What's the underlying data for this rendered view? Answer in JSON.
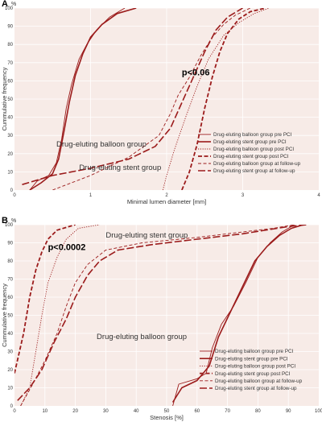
{
  "figure": {
    "colors": {
      "series": "#9b1b1b",
      "panel_bg": "#f7ebe7",
      "text": "#333333"
    }
  },
  "chart_data": [
    {
      "panel_label": "A",
      "type": "line",
      "title": "",
      "xlabel": "Minimal lumen diameter [mm]",
      "ylabel": "Cummulative frequency",
      "y_unit": "%",
      "xlim": [
        0,
        4
      ],
      "ylim": [
        0,
        100
      ],
      "xticks": [
        0,
        1,
        2,
        3,
        4
      ],
      "yticks": [
        0,
        10,
        20,
        30,
        40,
        50,
        60,
        70,
        80,
        90,
        100
      ],
      "grid": true,
      "legend_position": "bottom-right",
      "annotations": [
        {
          "text": "p<0.06",
          "x": 2.2,
          "y": 63,
          "bold": true
        },
        {
          "text": "Drug-eluting balloon group",
          "x": 0.55,
          "y": 24,
          "bold": false
        },
        {
          "text": "Drug-eluting stent group",
          "x": 0.85,
          "y": 11,
          "bold": false
        }
      ],
      "series": [
        {
          "name": "Drug-eluting balloon group pre PCI",
          "dash": "solid",
          "width": 0.9,
          "points": [
            [
              0.2,
              0
            ],
            [
              0.3,
              5
            ],
            [
              0.45,
              8
            ],
            [
              0.55,
              15
            ],
            [
              0.62,
              28
            ],
            [
              0.68,
              45
            ],
            [
              0.75,
              58
            ],
            [
              0.85,
              72
            ],
            [
              0.95,
              80
            ],
            [
              1.08,
              88
            ],
            [
              1.25,
              95
            ],
            [
              1.45,
              100
            ]
          ]
        },
        {
          "name": "Drug-eluting stent group pre PCI",
          "dash": "solid",
          "width": 1.6,
          "points": [
            [
              0.2,
              0
            ],
            [
              0.35,
              4
            ],
            [
              0.5,
              9
            ],
            [
              0.58,
              17
            ],
            [
              0.65,
              32
            ],
            [
              0.72,
              48
            ],
            [
              0.8,
              63
            ],
            [
              0.9,
              75
            ],
            [
              1.0,
              84
            ],
            [
              1.15,
              91
            ],
            [
              1.35,
              97
            ],
            [
              1.6,
              100
            ]
          ]
        },
        {
          "name": "Drug-eluting balloon group post PCI",
          "dash": "dot",
          "width": 0.9,
          "points": [
            [
              1.95,
              0
            ],
            [
              2.0,
              8
            ],
            [
              2.1,
              22
            ],
            [
              2.25,
              40
            ],
            [
              2.4,
              57
            ],
            [
              2.55,
              72
            ],
            [
              2.75,
              85
            ],
            [
              2.95,
              92
            ],
            [
              3.15,
              97
            ],
            [
              3.35,
              100
            ]
          ]
        },
        {
          "name": "Drug-eluting stent group post PCI",
          "dash": "heavydash",
          "width": 1.8,
          "points": [
            [
              2.2,
              0
            ],
            [
              2.3,
              10
            ],
            [
              2.4,
              25
            ],
            [
              2.5,
              45
            ],
            [
              2.6,
              62
            ],
            [
              2.7,
              76
            ],
            [
              2.8,
              86
            ],
            [
              2.95,
              94
            ],
            [
              3.1,
              98
            ],
            [
              3.3,
              100
            ]
          ]
        },
        {
          "name": "Drug-eluting balloon group at follow-up",
          "dash": "dash",
          "width": 0.9,
          "points": [
            [
              0.5,
              0
            ],
            [
              1.0,
              8
            ],
            [
              1.5,
              18
            ],
            [
              1.9,
              30
            ],
            [
              2.05,
              42
            ],
            [
              2.15,
              52
            ],
            [
              2.3,
              62
            ],
            [
              2.45,
              74
            ],
            [
              2.6,
              84
            ],
            [
              2.75,
              91
            ],
            [
              2.9,
              96
            ],
            [
              3.1,
              100
            ]
          ]
        },
        {
          "name": "Drug-eluting stent group at follow-up",
          "dash": "longdash",
          "width": 1.6,
          "points": [
            [
              0.1,
              3
            ],
            [
              0.5,
              8
            ],
            [
              1.0,
              12
            ],
            [
              1.5,
              17
            ],
            [
              1.85,
              24
            ],
            [
              2.05,
              34
            ],
            [
              2.2,
              48
            ],
            [
              2.35,
              62
            ],
            [
              2.5,
              76
            ],
            [
              2.65,
              88
            ],
            [
              2.8,
              95
            ],
            [
              3.0,
              100
            ]
          ]
        }
      ]
    },
    {
      "panel_label": "B",
      "type": "line",
      "title": "",
      "xlabel": "Stenosis [%]",
      "ylabel": "Cummulative frequency",
      "y_unit": "%",
      "xlim": [
        0,
        100
      ],
      "ylim": [
        0,
        100
      ],
      "xticks": [
        0,
        10,
        20,
        30,
        40,
        50,
        60,
        70,
        80,
        90,
        100
      ],
      "yticks": [
        0,
        10,
        20,
        30,
        40,
        50,
        60,
        70,
        80,
        90,
        100
      ],
      "grid": true,
      "legend_position": "bottom-right",
      "annotations": [
        {
          "text": "p<0.0002",
          "x": 11,
          "y": 86,
          "bold": true
        },
        {
          "text": "Drug-eluting stent group",
          "x": 30,
          "y": 93,
          "bold": false
        },
        {
          "text": "Drug-eluting balloon group",
          "x": 27,
          "y": 37,
          "bold": false
        }
      ],
      "series": [
        {
          "name": "Drug-eluting balloon group pre PCI",
          "dash": "solid",
          "width": 0.9,
          "points": [
            [
              52,
              0
            ],
            [
              54,
              12
            ],
            [
              60,
              15
            ],
            [
              63,
              18
            ],
            [
              65,
              32
            ],
            [
              68,
              45
            ],
            [
              72,
              55
            ],
            [
              76,
              68
            ],
            [
              80,
              82
            ],
            [
              84,
              90
            ],
            [
              88,
              96
            ],
            [
              92,
              100
            ]
          ]
        },
        {
          "name": "Drug-eluting stent group pre PCI",
          "dash": "solid",
          "width": 1.6,
          "points": [
            [
              52,
              2
            ],
            [
              55,
              10
            ],
            [
              60,
              14
            ],
            [
              64,
              22
            ],
            [
              67,
              38
            ],
            [
              71,
              52
            ],
            [
              75,
              66
            ],
            [
              79,
              80
            ],
            [
              83,
              88
            ],
            [
              87,
              94
            ],
            [
              91,
              98
            ],
            [
              95,
              100
            ]
          ]
        },
        {
          "name": "Drug-eluting balloon group post PCI",
          "dash": "dot",
          "width": 0.9,
          "points": [
            [
              2,
              0
            ],
            [
              5,
              10
            ],
            [
              7,
              30
            ],
            [
              9,
              50
            ],
            [
              11,
              68
            ],
            [
              14,
              82
            ],
            [
              17,
              92
            ],
            [
              21,
              98
            ],
            [
              28,
              100
            ]
          ]
        },
        {
          "name": "Drug-eluting stent group post PCI",
          "dash": "heavydash",
          "width": 1.8,
          "points": [
            [
              0,
              18
            ],
            [
              3,
              40
            ],
            [
              5,
              60
            ],
            [
              7,
              75
            ],
            [
              9,
              85
            ],
            [
              11,
              92
            ],
            [
              14,
              97
            ],
            [
              20,
              100
            ]
          ]
        },
        {
          "name": "Drug-eluting balloon group at follow-up",
          "dash": "dash",
          "width": 0.9,
          "points": [
            [
              2,
              0
            ],
            [
              6,
              12
            ],
            [
              10,
              25
            ],
            [
              14,
              40
            ],
            [
              17,
              55
            ],
            [
              20,
              68
            ],
            [
              24,
              78
            ],
            [
              30,
              86
            ],
            [
              42,
              90
            ],
            [
              60,
              93
            ],
            [
              75,
              96
            ],
            [
              85,
              98
            ],
            [
              92,
              100
            ]
          ]
        },
        {
          "name": "Drug-eluting stent group at follow-up",
          "dash": "longdash",
          "width": 1.6,
          "points": [
            [
              1,
              3
            ],
            [
              5,
              10
            ],
            [
              9,
              20
            ],
            [
              13,
              35
            ],
            [
              17,
              48
            ],
            [
              20,
              60
            ],
            [
              24,
              72
            ],
            [
              28,
              80
            ],
            [
              34,
              86
            ],
            [
              45,
              89
            ],
            [
              60,
              92
            ],
            [
              75,
              95
            ],
            [
              90,
              99
            ],
            [
              96,
              100
            ]
          ]
        }
      ]
    }
  ]
}
